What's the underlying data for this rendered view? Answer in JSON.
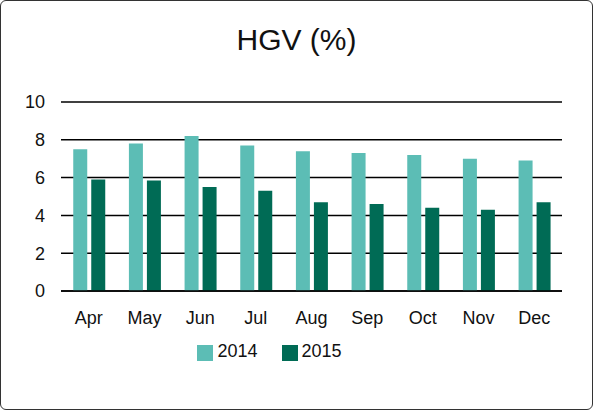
{
  "chart_data": {
    "type": "bar",
    "title": "HGV (%)",
    "categories": [
      "Apr",
      "May",
      "Jun",
      "Jul",
      "Aug",
      "Sep",
      "Oct",
      "Nov",
      "Dec"
    ],
    "series": [
      {
        "name": "2014",
        "color": "#5cbdb5",
        "values": [
          7.5,
          7.8,
          8.2,
          7.7,
          7.4,
          7.3,
          7.2,
          7.0,
          6.9
        ]
      },
      {
        "name": "2015",
        "color": "#006b55",
        "values": [
          5.9,
          5.85,
          5.5,
          5.3,
          4.7,
          4.6,
          4.4,
          4.3,
          4.7
        ]
      }
    ],
    "ylim": [
      0,
      10
    ],
    "yticks": [
      0,
      2,
      4,
      6,
      8,
      10
    ],
    "grid": true,
    "legend": "bottom"
  }
}
